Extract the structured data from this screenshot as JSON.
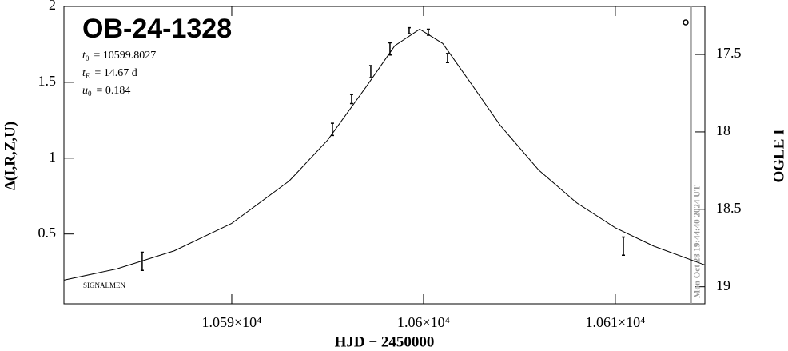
{
  "chart_data": {
    "type": "scatter",
    "title": "OB-24-1328",
    "params": [
      {
        "symbol": "t",
        "subscript": "0",
        "text": "= 10599.8027"
      },
      {
        "symbol": "t",
        "subscript": "E",
        "text": "= 14.67 d"
      },
      {
        "symbol": "u",
        "subscript": "0",
        "text": "= 0.184"
      }
    ],
    "corner_text": "SIGNALMEN",
    "xlabel": "HJD − 2450000",
    "ylabel": "Δ(I,R,Z,U)",
    "y2label": "OGLE I",
    "xlim": [
      10581.25,
      10614.67
    ],
    "xticks": [
      {
        "value": 10590,
        "label": "1.059×10⁴"
      },
      {
        "value": 10600,
        "label": "1.06×10⁴"
      },
      {
        "value": 10610,
        "label": "1.061×10⁴"
      }
    ],
    "ylim": [
      0.04,
      2.0
    ],
    "yticks": [
      0.5,
      1,
      1.5,
      2
    ],
    "y2lim": [
      19.11,
      17.19
    ],
    "y2ticks": [
      17.5,
      18,
      18.5,
      19
    ],
    "now_line": {
      "x": 10613.96,
      "label": "Mon Oct 28 19:44:40 2024 UT",
      "color": "#999999"
    },
    "series": [
      {
        "color": "#000000",
        "x": [
          10585.33,
          10595.25,
          10596.25,
          10597.25,
          10598.25,
          10599.25,
          10600.25,
          10601.25,
          10610.42
        ],
        "values": [
          0.32,
          1.19,
          1.39,
          1.57,
          1.72,
          1.84,
          1.83,
          1.66,
          0.42
        ],
        "errors": [
          0.06,
          0.04,
          0.03,
          0.04,
          0.04,
          0.02,
          0.02,
          0.03,
          0.06
        ]
      },
      {
        "color": "#000000",
        "x": [
          10581.25,
          10584,
          10587,
          10590,
          10593,
          10595,
          10597,
          10598.5,
          10599.8,
          10601,
          10602.5,
          10604,
          10606,
          10608,
          10610,
          10612,
          10614.67
        ],
        "values": [
          0.196,
          0.27,
          0.389,
          0.57,
          0.85,
          1.119,
          1.469,
          1.741,
          1.85,
          1.756,
          1.488,
          1.216,
          0.922,
          0.704,
          0.541,
          0.42,
          0.296
        ]
      }
    ]
  }
}
